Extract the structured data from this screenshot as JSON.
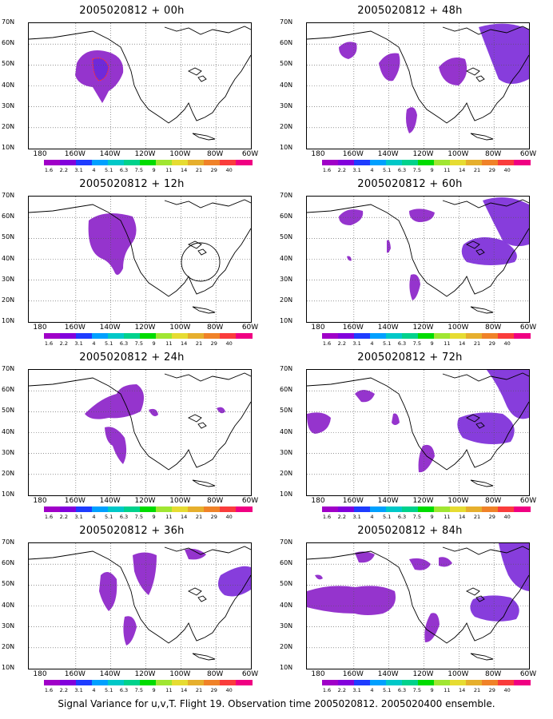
{
  "caption": "Signal Variance for u,v,T. Flight 19. Observation time 2005020812. 2005020400 ensemble.",
  "lat_labels": [
    "70N",
    "60N",
    "50N",
    "40N",
    "30N",
    "20N",
    "10N"
  ],
  "lon_labels": [
    "180",
    "160W",
    "140W",
    "120W",
    "100W",
    "80W",
    "60W"
  ],
  "colorbar": {
    "labels": [
      "1.6",
      "2.2",
      "3.1",
      "4",
      "5.1",
      "6.3",
      "7.5",
      "9",
      "11",
      "14",
      "21",
      "29",
      "40"
    ],
    "colors": [
      "#a000c8",
      "#8200dc",
      "#1e3cff",
      "#00a0ff",
      "#00c8c8",
      "#00d28c",
      "#00dc00",
      "#a0e632",
      "#e6dc32",
      "#e6af2d",
      "#f08228",
      "#fa3c3c",
      "#f00082"
    ]
  },
  "panels": [
    {
      "id": "p00",
      "title": "2005020812 + 00h",
      "col": 0,
      "row": 0
    },
    {
      "id": "p48",
      "title": "2005020812 + 48h",
      "col": 1,
      "row": 0
    },
    {
      "id": "p12",
      "title": "2005020812 + 12h",
      "col": 0,
      "row": 1
    },
    {
      "id": "p60",
      "title": "2005020812 + 60h",
      "col": 1,
      "row": 1
    },
    {
      "id": "p24",
      "title": "2005020812 + 24h",
      "col": 0,
      "row": 2
    },
    {
      "id": "p72",
      "title": "2005020812 + 72h",
      "col": 1,
      "row": 2
    },
    {
      "id": "p36",
      "title": "2005020812 + 36h",
      "col": 0,
      "row": 3
    },
    {
      "id": "p84",
      "title": "2005020812 + 84h",
      "col": 1,
      "row": 3
    }
  ]
}
